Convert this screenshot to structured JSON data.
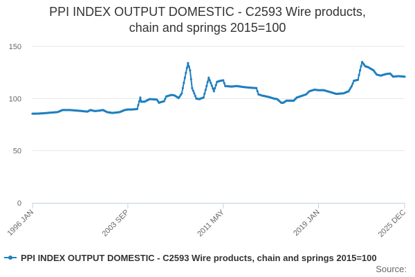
{
  "chart_data": {
    "type": "line",
    "title_lines": [
      "PPI INDEX OUTPUT DOMESTIC - C2593 Wire products,",
      "chain and springs 2015=100"
    ],
    "xlabel": "",
    "ylabel": "",
    "x_start": "1996-01",
    "x_end": "2025-12",
    "x_ticks": [
      "1996 JAN",
      "2003 SEP",
      "2011 MAY",
      "2019 JAN",
      "2025 DEC"
    ],
    "y_ticks": [
      0,
      50,
      100,
      150
    ],
    "ylim": [
      0,
      150
    ],
    "grid": true,
    "legend_position": "bottom-left",
    "series": [
      {
        "name": "PPI INDEX OUTPUT DOMESTIC - C2593 Wire products, chain and springs 2015=100",
        "color": "#1f7fbf",
        "anchors": [
          [
            "1996-01",
            85.5
          ],
          [
            "1996-06",
            85.6
          ],
          [
            "1997-01",
            86.0
          ],
          [
            "1997-06",
            86.5
          ],
          [
            "1998-01",
            87.0
          ],
          [
            "1998-06",
            89.0
          ],
          [
            "1999-01",
            89.0
          ],
          [
            "1999-06",
            88.6
          ],
          [
            "2000-01",
            88.0
          ],
          [
            "2000-06",
            87.5
          ],
          [
            "2000-09",
            89.0
          ],
          [
            "2001-01",
            88.0
          ],
          [
            "2001-06",
            88.5
          ],
          [
            "2001-09",
            89.0
          ],
          [
            "2002-01",
            87.0
          ],
          [
            "2002-06",
            86.2
          ],
          [
            "2003-01",
            87.0
          ],
          [
            "2003-06",
            89.0
          ],
          [
            "2003-09",
            89.5
          ],
          [
            "2004-01",
            89.5
          ],
          [
            "2004-06",
            90.0
          ],
          [
            "2004-09",
            101.0
          ],
          [
            "2004-10",
            97.0
          ],
          [
            "2005-01",
            97.0
          ],
          [
            "2005-06",
            99.5
          ],
          [
            "2006-01",
            99.0
          ],
          [
            "2006-03",
            96.0
          ],
          [
            "2006-08",
            97.5
          ],
          [
            "2006-10",
            102.0
          ],
          [
            "2007-03",
            103.5
          ],
          [
            "2007-06",
            103.0
          ],
          [
            "2007-10",
            100.5
          ],
          [
            "2008-01",
            105.0
          ],
          [
            "2008-04",
            120.0
          ],
          [
            "2008-07",
            134.0
          ],
          [
            "2008-09",
            127.0
          ],
          [
            "2008-11",
            110.0
          ],
          [
            "2009-03",
            100.0
          ],
          [
            "2009-06",
            99.5
          ],
          [
            "2009-10",
            101.0
          ],
          [
            "2010-01",
            112.0
          ],
          [
            "2010-03",
            120.0
          ],
          [
            "2010-05",
            115.0
          ],
          [
            "2010-08",
            107.0
          ],
          [
            "2010-11",
            116.0
          ],
          [
            "2011-02",
            117.0
          ],
          [
            "2011-05",
            117.5
          ],
          [
            "2011-07",
            112.0
          ],
          [
            "2012-01",
            111.5
          ],
          [
            "2012-06",
            112.0
          ],
          [
            "2013-01",
            111.0
          ],
          [
            "2013-06",
            110.5
          ],
          [
            "2014-01",
            110.0
          ],
          [
            "2014-03",
            104.0
          ],
          [
            "2014-06",
            103.0
          ],
          [
            "2015-01",
            101.5
          ],
          [
            "2015-06",
            100.0
          ],
          [
            "2015-09",
            99.5
          ],
          [
            "2016-01",
            96.0
          ],
          [
            "2016-03",
            96.0
          ],
          [
            "2016-06",
            98.0
          ],
          [
            "2017-01",
            98.0
          ],
          [
            "2017-04",
            101.0
          ],
          [
            "2018-01",
            104.0
          ],
          [
            "2018-04",
            107.0
          ],
          [
            "2018-09",
            108.5
          ],
          [
            "2019-01",
            108.0
          ],
          [
            "2019-06",
            108.0
          ],
          [
            "2020-01",
            106.0
          ],
          [
            "2020-06",
            104.5
          ],
          [
            "2021-01",
            105.0
          ],
          [
            "2021-06",
            107.0
          ],
          [
            "2021-09",
            112.0
          ],
          [
            "2021-11",
            117.0
          ],
          [
            "2022-03",
            118.0
          ],
          [
            "2022-05",
            127.0
          ],
          [
            "2022-07",
            135.0
          ],
          [
            "2022-10",
            131.0
          ],
          [
            "2023-01",
            130.0
          ],
          [
            "2023-06",
            127.0
          ],
          [
            "2023-09",
            123.0
          ],
          [
            "2024-01",
            122.0
          ],
          [
            "2024-06",
            123.5
          ],
          [
            "2024-10",
            124.0
          ],
          [
            "2025-01",
            121.0
          ],
          [
            "2025-06",
            121.5
          ],
          [
            "2025-12",
            121.0
          ]
        ]
      }
    ],
    "source_label": "Source:"
  }
}
